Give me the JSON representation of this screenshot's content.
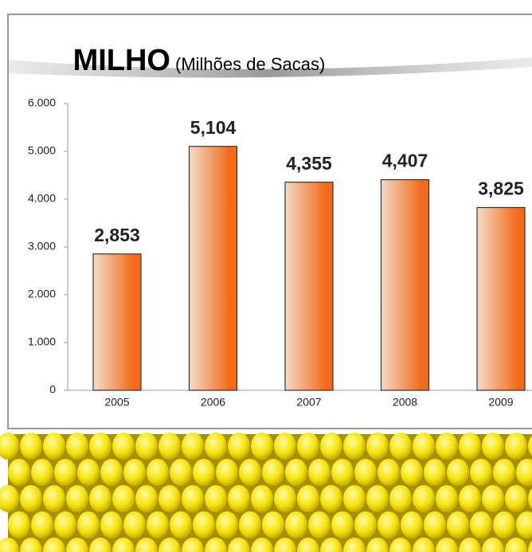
{
  "chart_data": {
    "type": "bar",
    "title": "MILHO",
    "subtitle": "(Milhões de Sacas)",
    "categories": [
      "2005",
      "2006",
      "2007",
      "2008",
      "2009"
    ],
    "values": [
      2853,
      5104,
      4355,
      4407,
      3825
    ],
    "value_labels": [
      "2,853",
      "5,104",
      "4,355",
      "4,407",
      "3,825"
    ],
    "color": "#f26a1b",
    "ylim": [
      0,
      6000
    ],
    "yticks": [
      0,
      {
        "value": 1000,
        "label": "1.000"
      },
      {
        "value": 2000,
        "label": "2.000"
      },
      {
        "value": 3000,
        "label": "3.000"
      },
      {
        "value": 4000,
        "label": "4.000"
      },
      {
        "value": 5000,
        "label": "5.000"
      },
      {
        "value": 6000,
        "label": "6.000"
      }
    ]
  }
}
